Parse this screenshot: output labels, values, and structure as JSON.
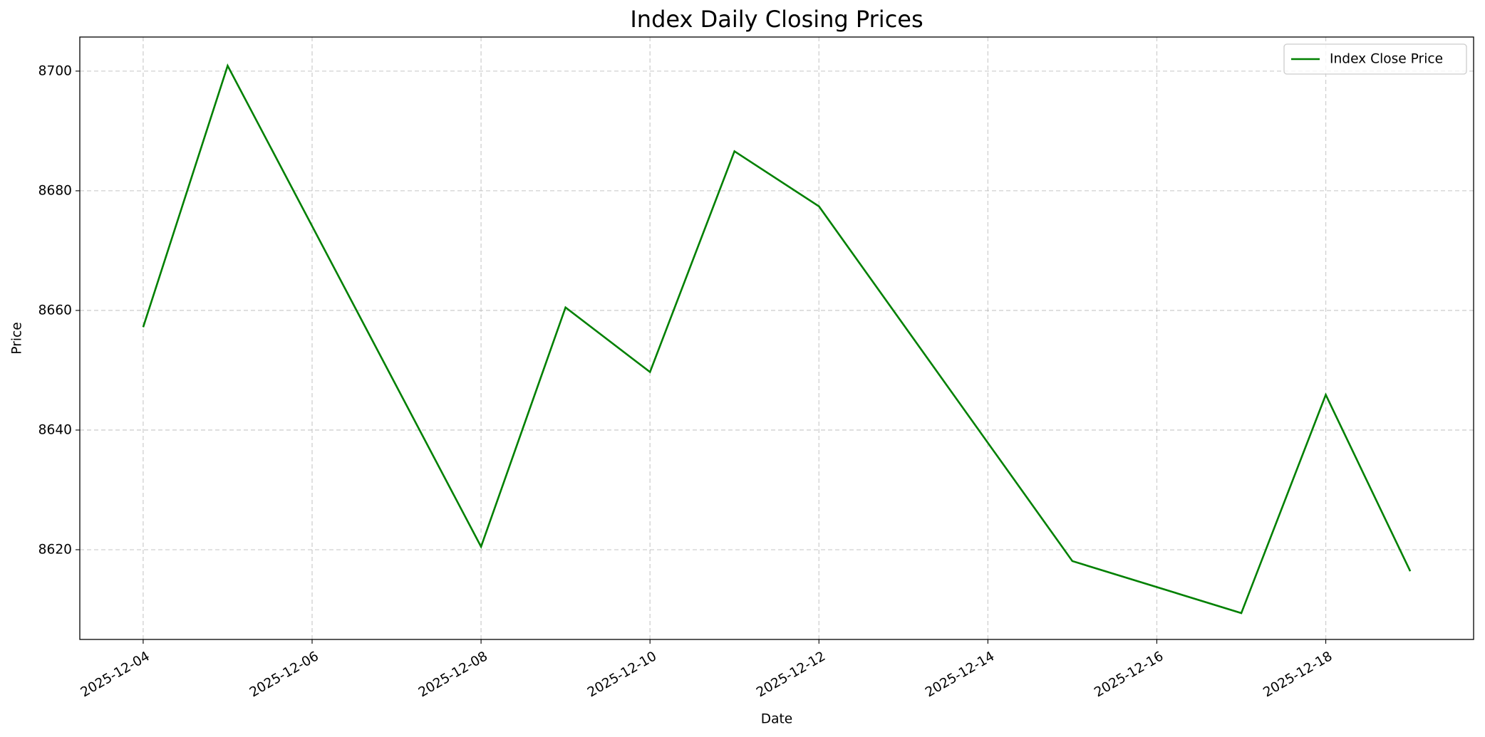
{
  "chart_data": {
    "type": "line",
    "title": "Index Daily Closing Prices",
    "x_label": "Date",
    "y_label": "Price",
    "x": [
      "2025-12-04",
      "2025-12-05",
      "2025-12-08",
      "2025-12-09",
      "2025-12-10",
      "2025-12-11",
      "2025-12-12",
      "2025-12-15",
      "2025-12-17",
      "2025-12-18",
      "2025-12-19"
    ],
    "series": [
      {
        "name": "Index Close Price",
        "color": "#008000",
        "values": [
          8657.2,
          8700.9,
          8620.5,
          8660.5,
          8649.7,
          8686.6,
          8677.4,
          8618.1,
          8609.4,
          8645.9,
          8616.4
        ]
      }
    ],
    "xlim": [
      "2025-12-03T06:00",
      "2025-12-19T18:00"
    ],
    "xticks": [
      "2025-12-04",
      "2025-12-06",
      "2025-12-08",
      "2025-12-10",
      "2025-12-12",
      "2025-12-14",
      "2025-12-16",
      "2025-12-18"
    ],
    "ylim": [
      8605.0,
      8705.7
    ],
    "yticks": [
      8620,
      8640,
      8660,
      8680,
      8700
    ],
    "grid": true,
    "legend": "upper right"
  }
}
